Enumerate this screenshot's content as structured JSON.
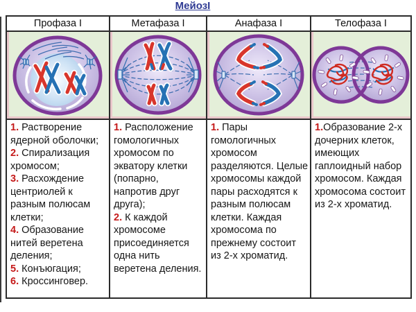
{
  "title": "МейозI",
  "colors": {
    "title-color": "#2e3a93",
    "number-color": "#c51a1a",
    "image-bg": "#e4efd9",
    "border-color": "#2b2b2b",
    "membrane-purple": "#7e3897",
    "chromosome-red": "#d8352b",
    "chromosome-blue": "#2672b4"
  },
  "phases": [
    {
      "name": "Профаза I",
      "illustration": "prophase-1-cell",
      "notes": [
        {
          "num": "1.",
          "text": " Растворение ядерной оболочки;"
        },
        {
          "num": "2.",
          "text": " Спирализация хромосом;"
        },
        {
          "num": "3.",
          "text": " Расхождение центриолей к разным полюсам клетки;"
        },
        {
          "num": "4.",
          "text": " Образование нитей веретена деления;"
        },
        {
          "num": "5.",
          "text": " Конъюгация;"
        },
        {
          "num": "6.",
          "text": " Кроссинговер."
        }
      ]
    },
    {
      "name": "Метафаза I",
      "illustration": "metaphase-1-cell",
      "notes": [
        {
          "num": "1.",
          "text": " Расположение гомологичных хромосом по экватору клетки (попарно, напротив друг друга);"
        },
        {
          "num": "2.",
          "text": " К каждой хромосоме присоединяется одна нить веретена деления."
        }
      ]
    },
    {
      "name": "Анафаза I",
      "illustration": "anaphase-1-cell",
      "notes": [
        {
          "num": "1.",
          "text": " Пары гомологичных хромосом разделяются. Целые хромосомы каждой пары расходятся к разным полюсам клетки. Каждая хромосома по прежнему состоит из 2-х хроматид."
        }
      ]
    },
    {
      "name": "Телофаза I",
      "illustration": "telophase-1-cell",
      "notes": [
        {
          "num": "1.",
          "text": "Образование 2-х дочерних клеток, имеющих гаплоидный набор хромосом. Каждая хромосома состоит из 2-х хроматид."
        }
      ]
    }
  ]
}
